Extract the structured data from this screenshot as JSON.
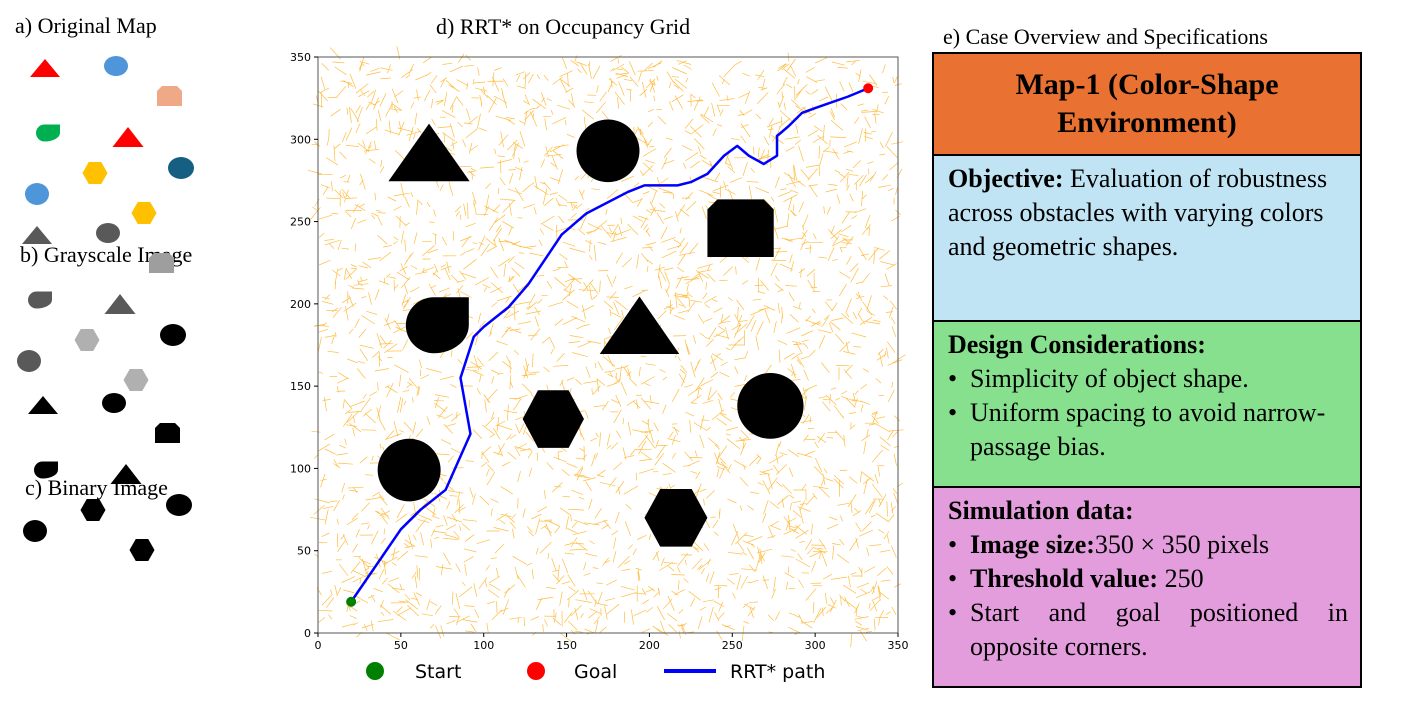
{
  "panels": {
    "a": {
      "label": "a) Original Map",
      "colors": [
        "#FF0000",
        "#4E95D9",
        "#F0A986",
        "#00B050",
        "#FF0000",
        "#FFC000",
        "#156082",
        "#4E95D9",
        "#FFC000"
      ]
    },
    "b": {
      "label": "b) Grayscale Image",
      "colors": [
        "#595959",
        "#595959",
        "#9E9E9E",
        "#595959",
        "#595959",
        "#B0B0B0",
        "#000000",
        "#595959",
        "#B0B0B0"
      ]
    },
    "c": {
      "label": "c) Binary Image",
      "colors": [
        "#000000",
        "#000000",
        "#000000",
        "#000000",
        "#000000",
        "#000000",
        "#000000",
        "#000000",
        "#000000"
      ]
    }
  },
  "chart_data": {
    "type": "line",
    "title": "d) RRT* on Occupancy Grid",
    "xlim": [
      0,
      350
    ],
    "ylim": [
      0,
      350
    ],
    "xticks": [
      "0",
      "50",
      "100",
      "150",
      "200",
      "250",
      "300",
      "350"
    ],
    "yticks": [
      "0",
      "50",
      "100",
      "150",
      "200",
      "250",
      "300",
      "350"
    ],
    "grid": false,
    "tree_color": "#FFA500",
    "obstacles": [
      {
        "shape": "triangle",
        "cx": 67,
        "cy": 292,
        "w": 49,
        "h": 35
      },
      {
        "shape": "circle",
        "cx": 175,
        "cy": 293,
        "r": 19
      },
      {
        "shape": "rounded-square",
        "cx": 255,
        "cy": 246,
        "w": 40,
        "h": 35
      },
      {
        "shape": "teardrop",
        "cx": 72,
        "cy": 187,
        "w": 38,
        "h": 34
      },
      {
        "shape": "triangle",
        "cx": 194,
        "cy": 187,
        "w": 48,
        "h": 35
      },
      {
        "shape": "circle",
        "cx": 273,
        "cy": 138,
        "r": 20
      },
      {
        "shape": "hexagon",
        "cx": 142,
        "cy": 130,
        "w": 37,
        "h": 35
      },
      {
        "shape": "circle",
        "cx": 55,
        "cy": 99,
        "r": 19
      },
      {
        "shape": "hexagon",
        "cx": 216,
        "cy": 70,
        "w": 38,
        "h": 35
      }
    ],
    "series": [
      {
        "name": "RRT* path",
        "color": "#0000FF",
        "x": [
          20,
          50,
          62,
          77,
          92,
          86,
          94,
          100,
          115,
          127,
          147,
          162,
          187,
          197,
          217,
          225,
          235,
          245,
          253,
          260,
          269,
          277,
          277,
          284,
          292,
          300,
          320,
          332
        ],
        "y": [
          19,
          63,
          75,
          87,
          121,
          155,
          180,
          186,
          198,
          212,
          242,
          255,
          268,
          272,
          272,
          274,
          279,
          290,
          296,
          290,
          285,
          290,
          302,
          308,
          316,
          319,
          326,
          331
        ]
      }
    ],
    "start": {
      "name": "Start",
      "x": 20,
      "y": 19,
      "color": "#008000"
    },
    "goal": {
      "name": "Goal",
      "x": 332,
      "y": 331,
      "color": "#FF0000"
    },
    "legend": [
      "Start",
      "Goal",
      "RRT* path"
    ],
    "legend_position": "bottom"
  },
  "spec": {
    "heading": "e) Case Overview and Specifications",
    "title": "Map-1 (Color-Shape Environment)",
    "objective_label": "Objective:",
    "objective_text": " Evaluation of robustness across obstacles with varying colors and geometric shapes.",
    "design_label": "Design Considerations:",
    "design_items": [
      "Simplicity of object shape.",
      "Uniform spacing to avoid narrow-passage bias."
    ],
    "sim_label": "Simulation data:",
    "sim_items": [
      {
        "label": "Image size:",
        "value": "350 × 350 pixels"
      },
      {
        "label": "Threshold value:",
        "value": " 250"
      },
      {
        "label": "",
        "value": "Start and goal positioned in opposite corners."
      }
    ],
    "colors": {
      "title": "#E97132",
      "objective": "#C0E4F4",
      "design": "#86E08E",
      "simulation": "#E39CDC"
    }
  }
}
